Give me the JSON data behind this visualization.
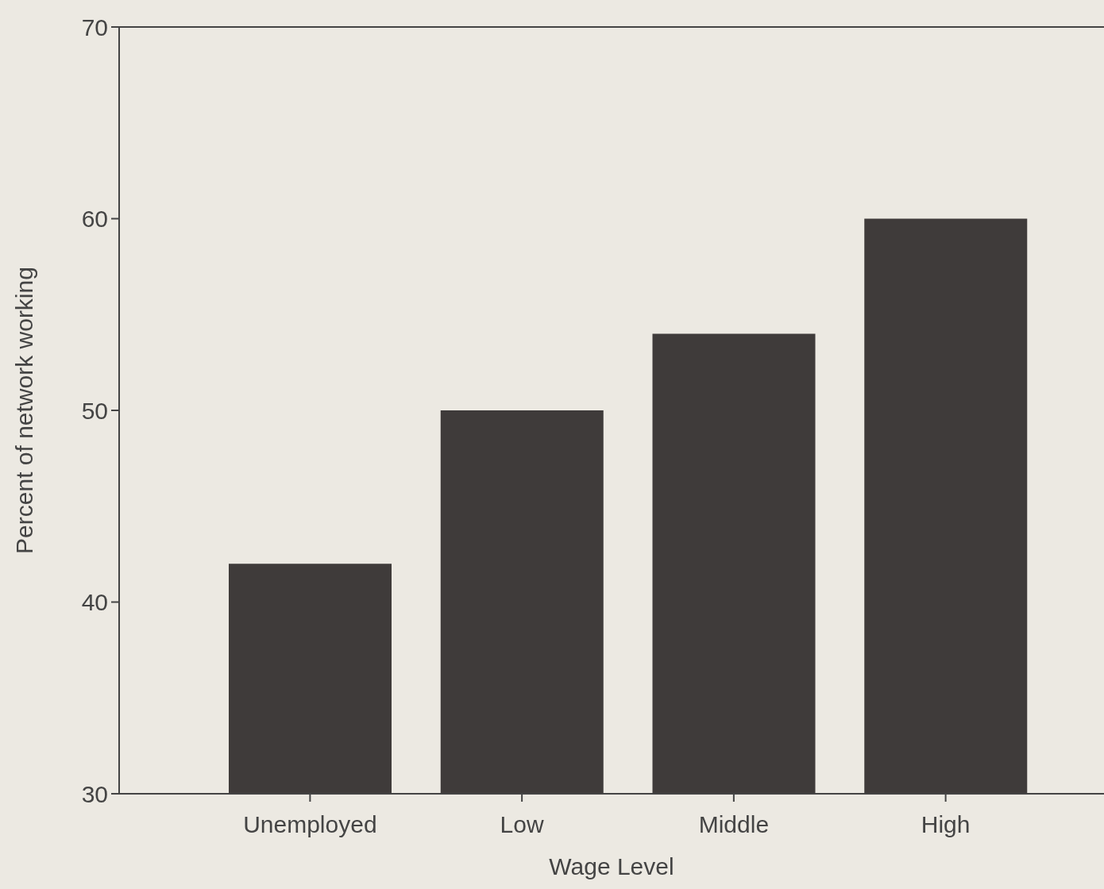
{
  "chart_data": {
    "type": "bar",
    "xlabel": "Wage Level",
    "ylabel": "Percent of network working",
    "categories": [
      "Unemployed",
      "Low",
      "Middle",
      "High"
    ],
    "values": [
      42,
      50,
      54,
      60
    ],
    "color": "#3f3b3a",
    "ylim": [
      30,
      70
    ],
    "yticks": [
      30,
      40,
      50,
      60,
      70
    ],
    "grid": false
  }
}
